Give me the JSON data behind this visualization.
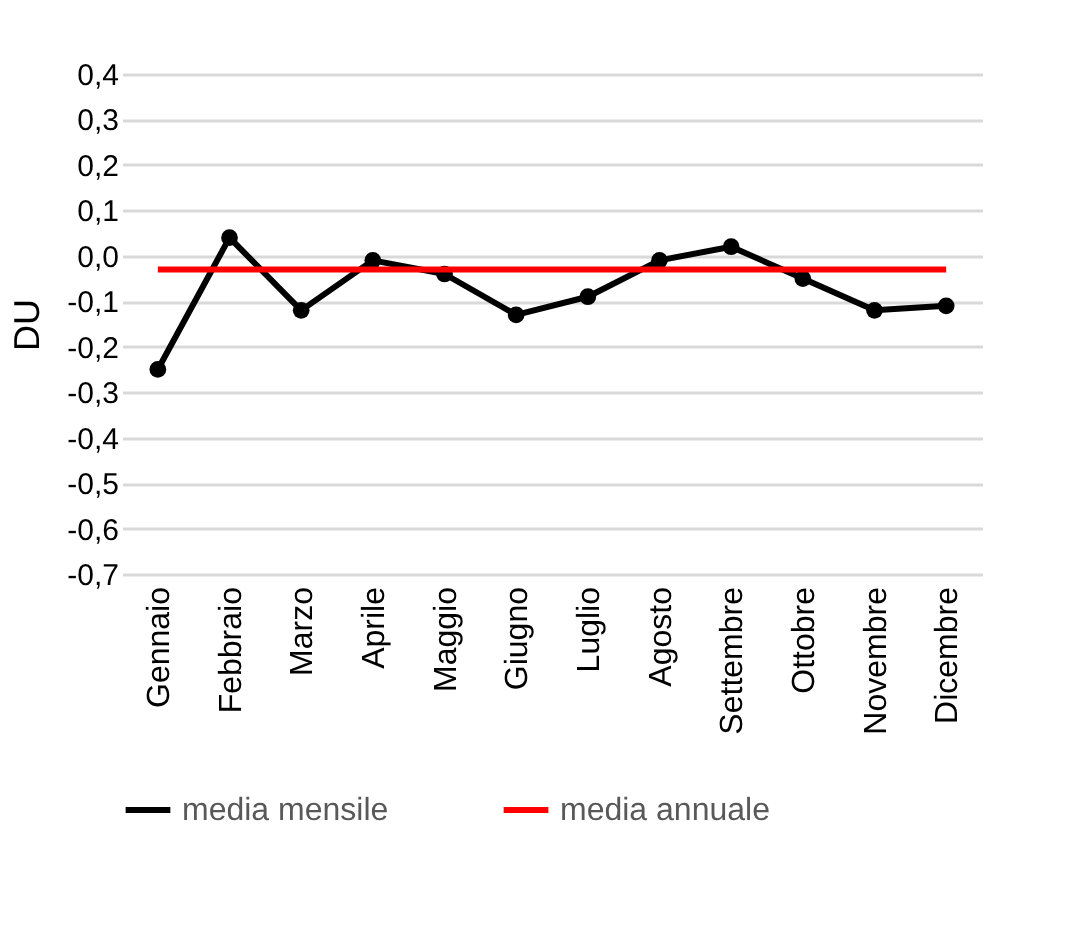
{
  "chart_data": {
    "type": "line",
    "ylabel": "DU",
    "categories": [
      "Gennaio",
      "Febbraio",
      "Marzo",
      "Aprile",
      "Maggio",
      "Giugno",
      "Luglio",
      "Agosto",
      "Settembre",
      "Ottobre",
      "Novembre",
      "Dicembre"
    ],
    "series": [
      {
        "name": "media mensile",
        "color": "#000000",
        "marker": "circle",
        "values": [
          -0.25,
          0.04,
          -0.12,
          -0.01,
          -0.04,
          -0.13,
          -0.09,
          -0.01,
          0.02,
          -0.05,
          -0.12,
          -0.11
        ]
      },
      {
        "name": "media annuale",
        "color": "#ff0000",
        "marker": "none",
        "values": [
          -0.03,
          -0.03,
          -0.03,
          -0.03,
          -0.03,
          -0.03,
          -0.03,
          -0.03,
          -0.03,
          -0.03,
          -0.03,
          -0.03
        ]
      }
    ],
    "ylim": [
      -0.7,
      0.4
    ],
    "yticks": [
      {
        "value": -0.7,
        "label": "-0,7"
      },
      {
        "value": -0.6,
        "label": "-0,6"
      },
      {
        "value": -0.5,
        "label": "-0,5"
      },
      {
        "value": -0.4,
        "label": "-0,4"
      },
      {
        "value": -0.3,
        "label": "-0,3"
      },
      {
        "value": -0.2,
        "label": "-0,2"
      },
      {
        "value": -0.1,
        "label": "-0,1"
      },
      {
        "value": 0,
        "label": "0,0"
      },
      {
        "value": 0.1,
        "label": "0,1"
      },
      {
        "value": 0.2,
        "label": "0,2"
      },
      {
        "value": 0.3,
        "label": "0,3"
      },
      {
        "value": 0.4,
        "label": "0,4"
      }
    ],
    "grid": "y",
    "legend": "bottom"
  }
}
